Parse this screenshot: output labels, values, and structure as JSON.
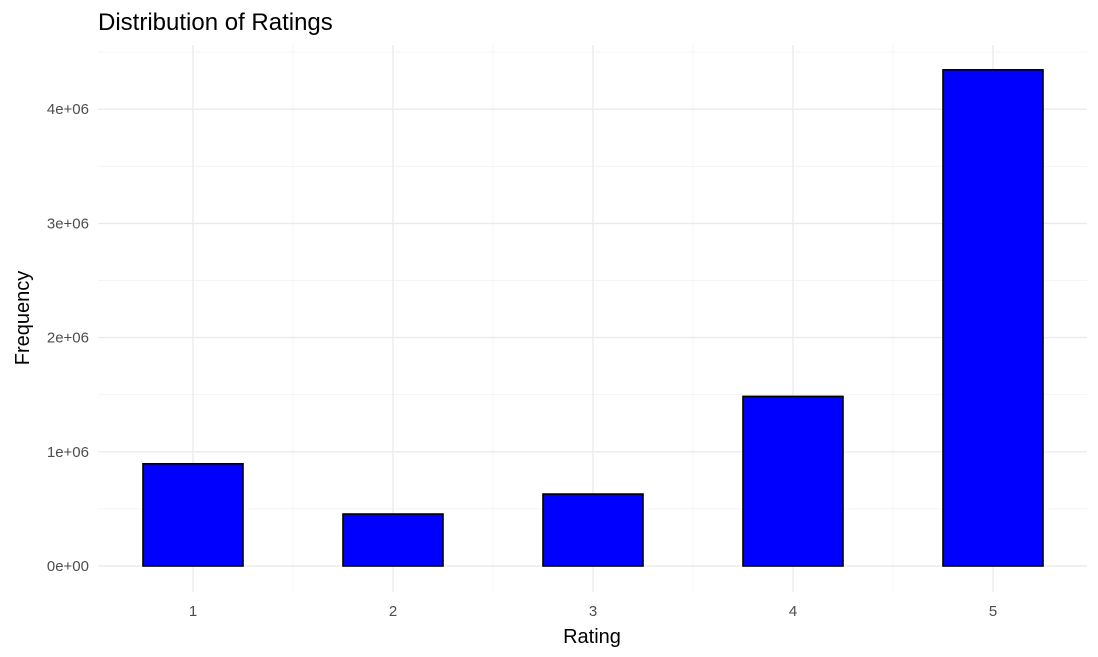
{
  "chart_data": {
    "type": "bar",
    "title": "Distribution of Ratings",
    "xlabel": "Rating",
    "ylabel": "Frequency",
    "categories": [
      "1",
      "2",
      "3",
      "4",
      "5"
    ],
    "values": [
      895000,
      455000,
      630000,
      1485000,
      4345000
    ],
    "ylim": [
      0,
      4600000
    ],
    "yticks": [
      0,
      1000000,
      2000000,
      3000000,
      4000000
    ],
    "ytick_labels": [
      "0e+00",
      "1e+06",
      "2e+06",
      "3e+06",
      "4e+06"
    ],
    "bar_color": "#0000ff",
    "bar_edge_color": "#000000",
    "grid": true,
    "legend": "none"
  }
}
